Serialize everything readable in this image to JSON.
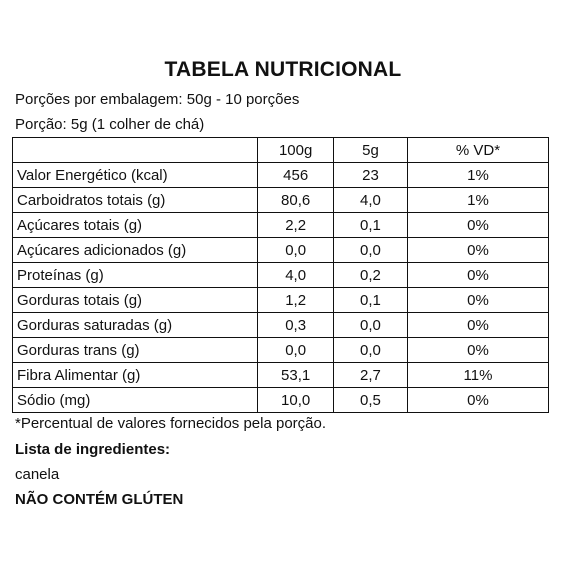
{
  "title": "TABELA NUTRICIONAL",
  "servings_per_package": "Porções por embalagem:  50g - 10 porções",
  "portion": "Porção: 5g (1 colher de chá)",
  "table": {
    "headers": [
      "",
      "100g",
      "5g",
      "% VD*"
    ],
    "rows": [
      {
        "name": "Valor Energético (kcal)",
        "per100": "456",
        "per5": "23",
        "vd": "1%"
      },
      {
        "name": "Carboidratos totais (g)",
        "per100": "80,6",
        "per5": "4,0",
        "vd": "1%"
      },
      {
        "name": "Açúcares totais (g)",
        "per100": "2,2",
        "per5": "0,1",
        "vd": "0%"
      },
      {
        "name": "Açúcares adicionados (g)",
        "per100": "0,0",
        "per5": "0,0",
        "vd": "0%"
      },
      {
        "name": "Proteínas (g)",
        "per100": "4,0",
        "per5": "0,2",
        "vd": "0%"
      },
      {
        "name": "Gorduras totais (g)",
        "per100": "1,2",
        "per5": "0,1",
        "vd": "0%"
      },
      {
        "name": "Gorduras saturadas (g)",
        "per100": "0,3",
        "per5": "0,0",
        "vd": "0%"
      },
      {
        "name": "Gorduras trans (g)",
        "per100": "0,0",
        "per5": "0,0",
        "vd": "0%"
      },
      {
        "name": "Fibra Alimentar (g)",
        "per100": "53,1",
        "per5": "2,7",
        "vd": "11%"
      },
      {
        "name": "Sódio (mg)",
        "per100": "10,0",
        "per5": "0,5",
        "vd": "0%"
      }
    ]
  },
  "footnote": "*Percentual de valores fornecidos pela porção.",
  "ingredients_title": "Lista de ingredientes:",
  "ingredients": "canela",
  "gluten_notice": "NÃO CONTÉM GLÚTEN"
}
